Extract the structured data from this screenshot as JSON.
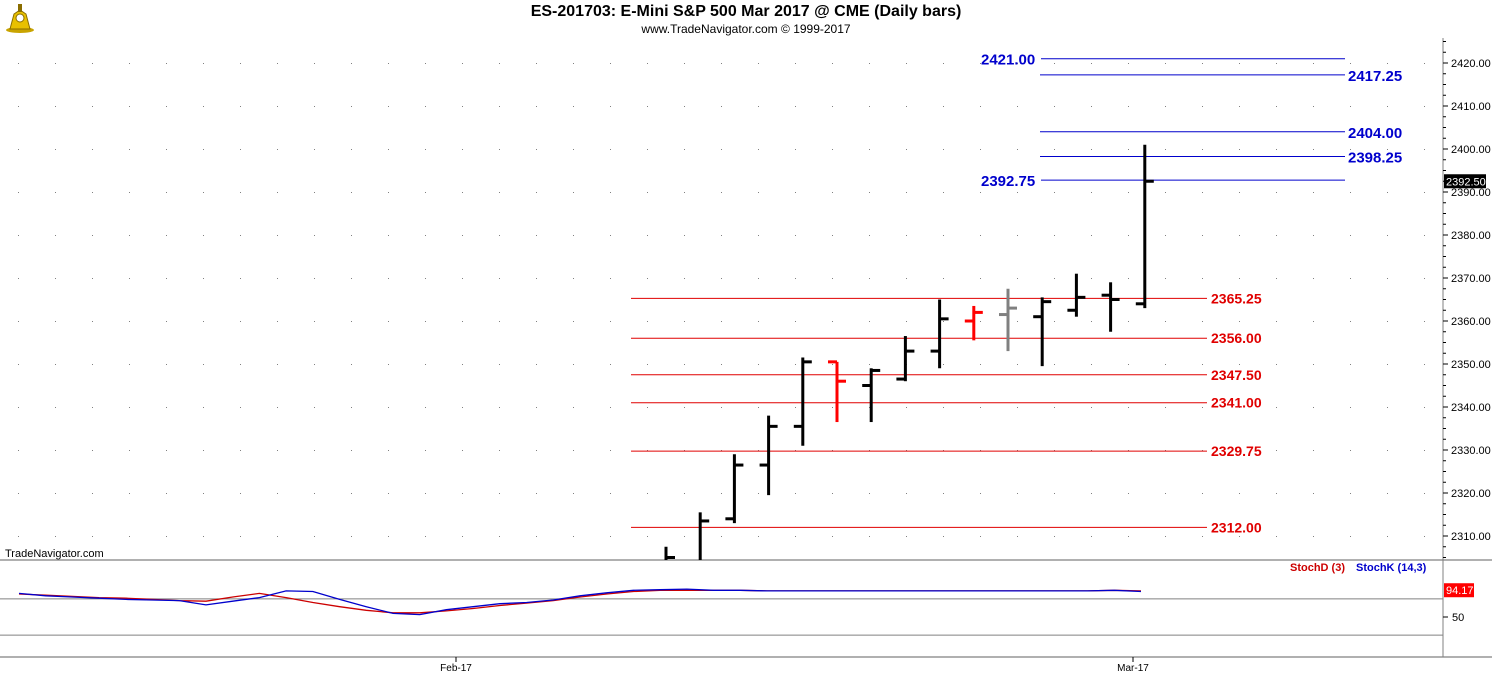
{
  "header": {
    "title": "ES-201703:  E-Mini S&P 500 Mar 2017 @ CME  (Daily bars)",
    "subtitle": "www.TradeNavigator.com © 1999-2017"
  },
  "watermark": "TradeNavigator.com",
  "colors": {
    "up_bar": "#000000",
    "down_bar": "#ff0000",
    "neutral_bar": "#808080",
    "support_line": "#e00000",
    "resistance_line": "#0000cc",
    "stoch_d": "#cc0000",
    "stoch_k": "#0000cc",
    "last_price_bg": "#000000",
    "stoch_value_bg": "#ff0000"
  },
  "chart_data": [
    {
      "type": "ohlc",
      "ylim": [
        2300,
        2427
      ],
      "y_ticks": [
        "2310.00",
        "2320.00",
        "2330.00",
        "2340.00",
        "2350.00",
        "2360.00",
        "2370.00",
        "2380.00",
        "2390.00",
        "2400.00",
        "2410.00",
        "2420.00"
      ],
      "x_tick_labels": [
        "Feb-17",
        "Mar-17"
      ],
      "last_price_label": "2392.50",
      "last_price": 2392.5,
      "bars": [
        {
          "open": 2289,
          "high": 2307.5,
          "low": 2285,
          "close": 2305,
          "color": "up"
        },
        {
          "open": 2300,
          "high": 2315.5,
          "low": 2299,
          "close": 2313.5,
          "color": "up"
        },
        {
          "open": 2314,
          "high": 2329,
          "low": 2313,
          "close": 2326.5,
          "color": "up"
        },
        {
          "open": 2326.5,
          "high": 2338,
          "low": 2319.5,
          "close": 2335.5,
          "color": "up"
        },
        {
          "open": 2335.5,
          "high": 2351.5,
          "low": 2331,
          "close": 2350.5,
          "color": "up"
        },
        {
          "open": 2350.5,
          "high": 2350.5,
          "low": 2336.5,
          "close": 2346,
          "color": "down"
        },
        {
          "open": 2345,
          "high": 2349,
          "low": 2336.5,
          "close": 2348.5,
          "color": "up"
        },
        {
          "open": 2346.5,
          "high": 2356.5,
          "low": 2346,
          "close": 2353,
          "color": "up"
        },
        {
          "open": 2353,
          "high": 2365,
          "low": 2349,
          "close": 2360.5,
          "color": "up"
        },
        {
          "open": 2360,
          "high": 2363.5,
          "low": 2355.5,
          "close": 2362,
          "color": "down"
        },
        {
          "open": 2361.5,
          "high": 2367.5,
          "low": 2353,
          "close": 2363,
          "color": "neutral"
        },
        {
          "open": 2361,
          "high": 2365.5,
          "low": 2349.5,
          "close": 2364.5,
          "color": "up"
        },
        {
          "open": 2362.5,
          "high": 2371,
          "low": 2361,
          "close": 2365.5,
          "color": "up"
        },
        {
          "open": 2366,
          "high": 2369,
          "low": 2357.5,
          "close": 2365,
          "color": "up"
        },
        {
          "open": 2364,
          "high": 2401,
          "low": 2363,
          "close": 2392.5,
          "color": "up"
        }
      ],
      "levels_red": [
        {
          "value": 2365.25,
          "label": "2365.25"
        },
        {
          "value": 2356.0,
          "label": "2356.00"
        },
        {
          "value": 2347.5,
          "label": "2347.50"
        },
        {
          "value": 2341.0,
          "label": "2341.00"
        },
        {
          "value": 2329.75,
          "label": "2329.75"
        },
        {
          "value": 2312.0,
          "label": "2312.00"
        }
      ],
      "levels_blue": [
        {
          "value": 2421.0,
          "label": "2421.00",
          "label_side": "left"
        },
        {
          "value": 2417.25,
          "label": "2417.25",
          "label_side": "right"
        },
        {
          "value": 2404.0,
          "label": "2404.00",
          "label_side": "right"
        },
        {
          "value": 2398.25,
          "label": "2398.25",
          "label_side": "right"
        },
        {
          "value": 2392.75,
          "label": "2392.75",
          "label_side": "left"
        }
      ]
    },
    {
      "type": "line",
      "ylim": [
        0,
        100
      ],
      "y_ticks": [
        "50"
      ],
      "current_value_label": "94.17",
      "series": [
        {
          "name": "StochD (3)",
          "color": "#cc0000",
          "values": [
            88,
            86,
            84,
            82,
            81,
            79,
            77,
            76,
            83,
            89,
            82,
            74,
            67,
            61,
            57,
            57,
            60,
            64,
            69,
            73,
            77,
            83,
            88,
            92,
            94,
            94,
            94,
            94,
            93,
            93,
            93,
            93,
            93,
            93,
            93,
            93,
            93,
            93,
            93,
            93,
            93,
            94,
            93
          ]
        },
        {
          "name": "StochK (14,3)",
          "color": "#0000cc",
          "values": [
            89,
            85,
            83,
            81,
            79,
            78,
            77,
            70,
            76,
            82,
            93,
            92,
            79,
            67,
            56,
            54,
            62,
            67,
            72,
            74,
            78,
            85,
            90,
            94,
            95,
            96,
            94,
            94,
            93,
            93,
            93,
            93,
            93,
            93,
            93,
            93,
            93,
            93,
            93,
            93,
            93,
            94,
            92
          ]
        }
      ]
    }
  ]
}
